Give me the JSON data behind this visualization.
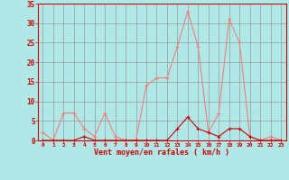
{
  "x": [
    0,
    1,
    2,
    3,
    4,
    5,
    6,
    7,
    8,
    9,
    10,
    11,
    12,
    13,
    14,
    15,
    16,
    17,
    18,
    19,
    20,
    21,
    22,
    23
  ],
  "rafales": [
    2,
    0,
    7,
    7,
    3,
    1,
    7,
    1,
    0,
    0,
    14,
    16,
    16,
    24,
    33,
    24,
    2,
    7,
    31,
    25,
    1,
    0,
    1,
    0
  ],
  "moyen": [
    0,
    0,
    0,
    0,
    1,
    0,
    0,
    0,
    0,
    0,
    0,
    0,
    0,
    3,
    6,
    3,
    2,
    1,
    3,
    3,
    1,
    0,
    0,
    0
  ],
  "line_color_rafales": "#f08080",
  "line_color_moyen": "#cc0000",
  "background_color": "#b0e8e8",
  "grid_color": "#999999",
  "xlabel": "Vent moyen/en rafales ( km/h )",
  "xlabel_color": "#cc0000",
  "tick_color": "#cc0000",
  "axis_color": "#cc0000",
  "ylim": [
    0,
    35
  ],
  "xlim": [
    -0.5,
    23.5
  ],
  "yticks": [
    0,
    5,
    10,
    15,
    20,
    25,
    30,
    35
  ],
  "xticks": [
    0,
    1,
    2,
    3,
    4,
    5,
    6,
    7,
    8,
    9,
    10,
    11,
    12,
    13,
    14,
    15,
    16,
    17,
    18,
    19,
    20,
    21,
    22,
    23
  ]
}
